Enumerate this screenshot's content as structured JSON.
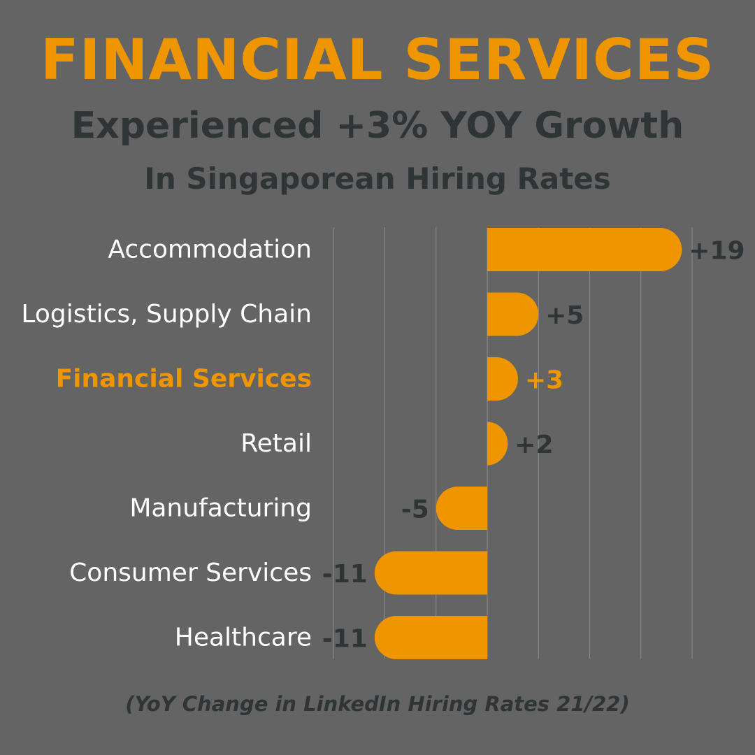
{
  "header": {
    "title": "FINANCIAL SERVICES",
    "subtitle": "Experienced +3% YOY Growth",
    "subtitle2": "In Singaporean Hiring Rates"
  },
  "footnote": "(YoY Change in LinkedIn Hiring Rates 21/22)",
  "colors": {
    "background": "#646464",
    "bar": "#EE9500",
    "highlight": "#EE9500",
    "category_text": "#FFFFFF",
    "value_text": "#2F3436",
    "gridline": "#8C8C8C"
  },
  "chart_data": {
    "type": "bar",
    "orientation": "horizontal",
    "categories": [
      "Accommodation",
      "Logistics, Supply Chain",
      "Financial Services",
      "Retail",
      "Manufacturing",
      "Consumer Services",
      "Healthcare"
    ],
    "values": [
      19,
      5,
      3,
      2,
      -5,
      -11,
      -11
    ],
    "value_labels": [
      "+19",
      "+5",
      "+3",
      "+2",
      "-5",
      "-11",
      "-11"
    ],
    "highlight": "Financial Services",
    "xlim": [
      -15,
      20
    ],
    "grid": true,
    "xlabel": "",
    "ylabel": ""
  }
}
